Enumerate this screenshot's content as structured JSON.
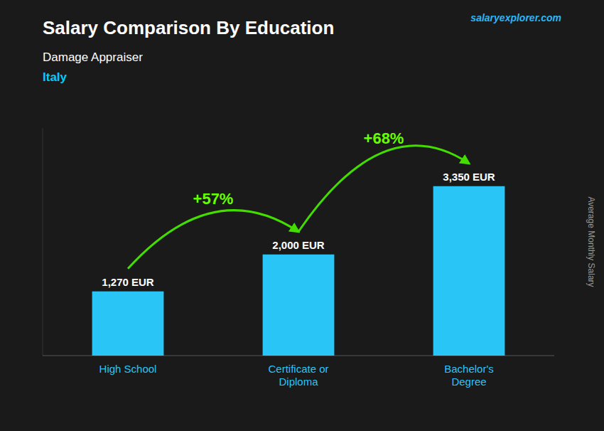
{
  "chart_data": {
    "type": "bar",
    "title": "Salary Comparison By Education",
    "subtitle": "Damage Appraiser",
    "country": "Italy",
    "watermark": "salaryexplorer.com",
    "y_label": "Average Monthly Salary",
    "categories": [
      "High School",
      "Certificate or\nDiploma",
      "Bachelor's\nDegree"
    ],
    "values": [
      1270,
      2000,
      3350
    ],
    "value_labels": [
      "1,270 EUR",
      "2,000 EUR",
      "3,350 EUR"
    ],
    "data_labels": true,
    "annotations": [
      "+57%",
      "+68%"
    ],
    "color": "#29c5f6",
    "ylim": [
      0,
      4500
    ],
    "tick_labels": "x",
    "grid": false
  }
}
